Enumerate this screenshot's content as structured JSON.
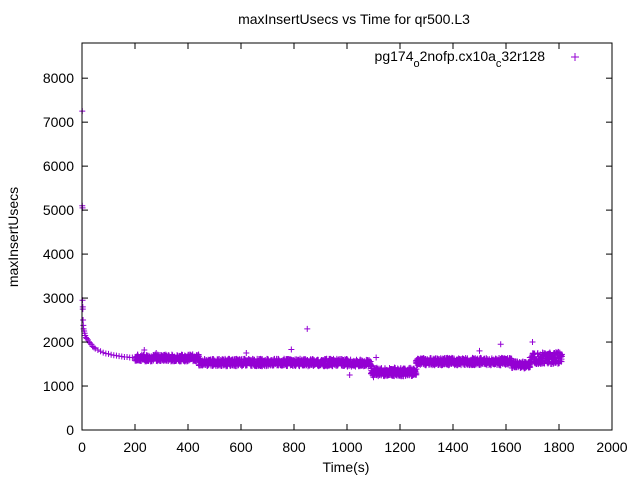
{
  "chart_data": {
    "type": "scatter",
    "title": "maxInsertUsecs vs Time for qr500.L3",
    "xlabel": "Time(s)",
    "ylabel": "maxInsertUsecs",
    "xlim": [
      0,
      2000
    ],
    "ylim": [
      0,
      8800
    ],
    "x_ticks": [
      "0",
      "200",
      "400",
      "600",
      "800",
      "1000",
      "1200",
      "1400",
      "1600",
      "1800",
      "2000"
    ],
    "y_ticks": [
      "0",
      "1000",
      "2000",
      "3000",
      "4000",
      "5000",
      "6000",
      "7000",
      "8000"
    ],
    "legend": {
      "position": "top-right",
      "label_parts": [
        {
          "text": "pg174",
          "sub": false
        },
        {
          "text": "o",
          "sub": true
        },
        {
          "text": "2nofp.cx10a",
          "sub": false
        },
        {
          "text": "c",
          "sub": true
        },
        {
          "text": "32r128",
          "sub": false
        }
      ]
    },
    "marker": "+",
    "grid": false,
    "series": [
      {
        "color": "#9400d3",
        "points": [
          [
            1,
            7250
          ],
          [
            1,
            5100
          ],
          [
            2,
            5050
          ],
          [
            2,
            2950
          ],
          [
            3,
            2800
          ],
          [
            3,
            2750
          ],
          [
            4,
            2500
          ],
          [
            5,
            2380
          ],
          [
            6,
            2300
          ],
          [
            8,
            2250
          ],
          [
            10,
            2200
          ],
          [
            12,
            2150
          ],
          [
            15,
            2100
          ],
          [
            18,
            2080
          ],
          [
            22,
            2050
          ],
          [
            26,
            2000
          ],
          [
            30,
            1980
          ],
          [
            35,
            1950
          ],
          [
            40,
            1900
          ],
          [
            45,
            1880
          ],
          [
            50,
            1850
          ],
          [
            60,
            1820
          ],
          [
            70,
            1790
          ],
          [
            80,
            1760
          ],
          [
            90,
            1740
          ],
          [
            100,
            1730
          ],
          [
            110,
            1710
          ],
          [
            120,
            1700
          ],
          [
            130,
            1690
          ],
          [
            140,
            1680
          ],
          [
            150,
            1670
          ],
          [
            160,
            1660
          ],
          [
            170,
            1660
          ],
          [
            180,
            1650
          ],
          [
            190,
            1650
          ],
          [
            200,
            1650
          ],
          [
            230,
            1640
          ],
          [
            235,
            1820
          ],
          [
            280,
            1750
          ],
          [
            340,
            1700
          ],
          [
            450,
            1550
          ],
          [
            500,
            1550
          ],
          [
            620,
            1750
          ],
          [
            700,
            1530
          ],
          [
            790,
            1830
          ],
          [
            850,
            2300
          ],
          [
            900,
            1560
          ],
          [
            1000,
            1520
          ],
          [
            1010,
            1250
          ],
          [
            1050,
            1600
          ],
          [
            1100,
            1200
          ],
          [
            1110,
            1650
          ],
          [
            1150,
            1350
          ],
          [
            1200,
            1300
          ],
          [
            1240,
            1320
          ],
          [
            1260,
            1550
          ],
          [
            1270,
            1500
          ],
          [
            1300,
            1560
          ],
          [
            1400,
            1520
          ],
          [
            1500,
            1800
          ],
          [
            1580,
            1950
          ],
          [
            1650,
            1500
          ],
          [
            1685,
            1420
          ],
          [
            1700,
            2000
          ],
          [
            1720,
            1750
          ],
          [
            1800,
            1560
          ]
        ],
        "bands": [
          {
            "x": [
              200,
              440
            ],
            "y": [
              1560,
              1720
            ]
          },
          {
            "x": [
              440,
              1000
            ],
            "y": [
              1450,
              1620
            ]
          },
          {
            "x": [
              1000,
              1090
            ],
            "y": [
              1440,
              1600
            ]
          },
          {
            "x": [
              1090,
              1260
            ],
            "y": [
              1220,
              1420
            ]
          },
          {
            "x": [
              1260,
              1620
            ],
            "y": [
              1470,
              1640
            ]
          },
          {
            "x": [
              1620,
              1690
            ],
            "y": [
              1400,
              1560
            ]
          },
          {
            "x": [
              1690,
              1810
            ],
            "y": [
              1500,
              1780
            ]
          }
        ]
      }
    ]
  }
}
